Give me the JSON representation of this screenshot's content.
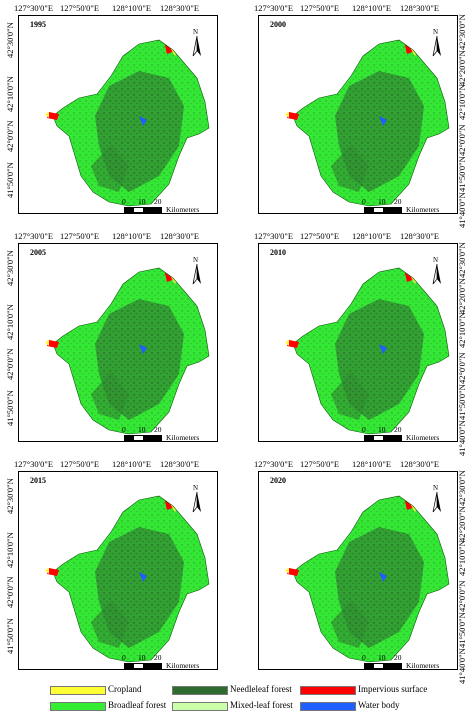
{
  "panels": [
    {
      "year": "1995"
    },
    {
      "year": "2000"
    },
    {
      "year": "2005"
    },
    {
      "year": "2010"
    },
    {
      "year": "2015"
    },
    {
      "year": "2020"
    }
  ],
  "axis": {
    "lon_ticks": [
      "127°30'0\"E",
      "127°50'0\"E",
      "128°10'0\"E",
      "128°30'0\"E"
    ],
    "lat_ticks_left": [
      "42°30'0\"N",
      "42°10'0\"N",
      "42°0'0\"N",
      "41°50'0\"N"
    ],
    "lat_ticks_right": [
      "42°30'0\"N",
      "42°20'0\"N",
      "42°10'0\"N",
      "42°0'0\"N",
      "41°50'0\"N",
      "41°40'0\"N"
    ]
  },
  "scale_bar": {
    "labels": [
      "0",
      "10",
      "20"
    ],
    "unit": "Kilometers"
  },
  "north_label": "N",
  "legend": [
    {
      "label": "Cropland",
      "color": "#ffff33"
    },
    {
      "label": "Needleleaf forest",
      "color": "#2e6b2e"
    },
    {
      "label": "Impervious surface",
      "color": "#ff0000"
    },
    {
      "label": "Broadleaf forest",
      "color": "#33ee33"
    },
    {
      "label": "Mixed-leaf forest",
      "color": "#ccffaa"
    },
    {
      "label": "Water body",
      "color": "#1f5fff"
    }
  ]
}
